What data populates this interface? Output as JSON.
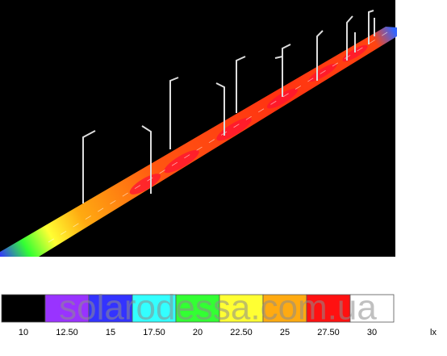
{
  "legend": {
    "colors": [
      "#000000",
      "#9933ff",
      "#3333ff",
      "#33ffff",
      "#33ff33",
      "#ffff33",
      "#ffaa11",
      "#ff1111",
      "#ffffff"
    ],
    "labels": [
      "10",
      "12.50",
      "15",
      "17.50",
      "20",
      "22.50",
      "25",
      "27.50",
      "30"
    ],
    "unit": "lx"
  },
  "watermark": "solarodessa.com.ua"
}
